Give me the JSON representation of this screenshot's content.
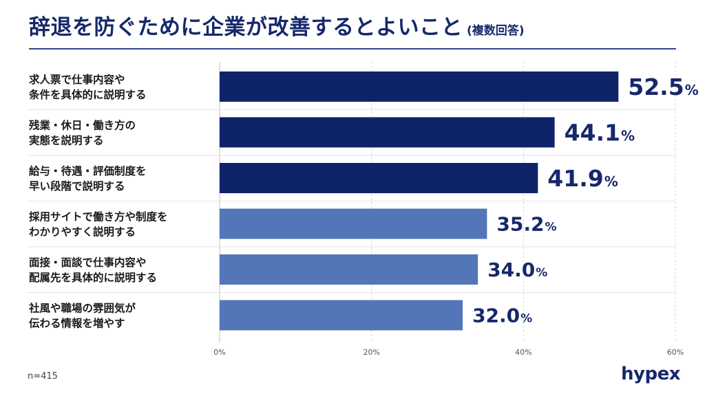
{
  "title": "辞退を防ぐために企業が改善するとよいこと",
  "subtitle": "(複数回答)",
  "note": "n=415",
  "logo_text": "hypex",
  "colors": {
    "highlight_bar": "#0f2369",
    "normal_bar": "#5276b8",
    "value_text": "#16286b",
    "title": "#16286b"
  },
  "chart_data": {
    "type": "bar",
    "orientation": "horizontal",
    "categories": [
      [
        "求人票で仕事内容や",
        "条件を具体的に説明する"
      ],
      [
        "残業・休日・働き方の",
        "実態を説明する"
      ],
      [
        "給与・待遇・評価制度を",
        "早い段階で説明する"
      ],
      [
        "採用サイトで働き方や制度を",
        "わかりやすく説明する"
      ],
      [
        "面接・面談で仕事内容や",
        "配属先を具体的に説明する"
      ],
      [
        "社風や職場の雰囲気が",
        "伝わる情報を増やす"
      ]
    ],
    "values": [
      52.5,
      44.1,
      41.9,
      35.2,
      34.0,
      32.0
    ],
    "value_labels": [
      "52.5",
      "44.1",
      "41.9",
      "35.2",
      "34.0",
      "32.0"
    ],
    "value_suffix": "%",
    "highlighted": [
      true,
      true,
      true,
      false,
      false,
      false
    ],
    "xlim": [
      0,
      60
    ],
    "x_ticks": [
      0,
      20,
      40,
      60
    ],
    "x_tick_labels": [
      "0%",
      "20%",
      "40%",
      "60%"
    ],
    "grid": true
  }
}
